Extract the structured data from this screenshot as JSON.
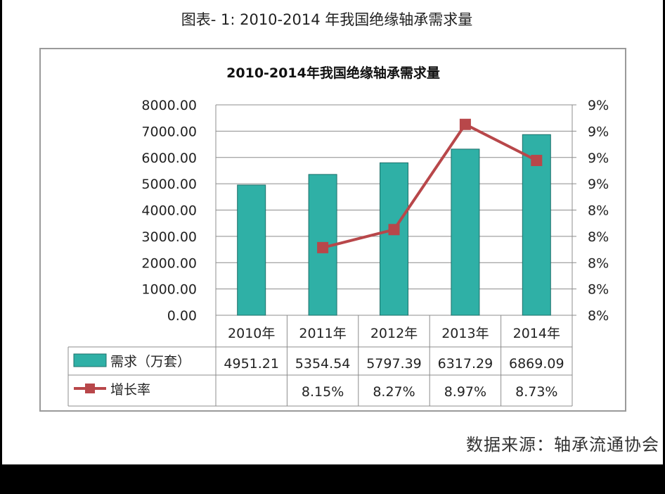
{
  "caption": "图表- 1: 2010-2014 年我国绝缘轴承需求量",
  "source_note": "数据来源：轴承流通协会",
  "colors": {
    "bar": "#2fb0a6",
    "bar_stroke": "#1d6f69",
    "line": "#b8474a",
    "grid": "#8c8c8c"
  },
  "chart_data": {
    "type": "bar",
    "title": "2010-2014年我国绝缘轴承需求量",
    "categories": [
      "2010年",
      "2011年",
      "2012年",
      "2013年",
      "2014年"
    ],
    "series": [
      {
        "name": "需求（万套）",
        "type": "bar",
        "axis": "left",
        "values": [
          4951.21,
          5354.54,
          5797.39,
          6317.29,
          6869.09
        ]
      },
      {
        "name": "增长率",
        "type": "line",
        "axis": "right",
        "values": [
          null,
          8.15,
          8.27,
          8.97,
          8.73
        ],
        "labels": [
          "",
          "8.15%",
          "8.27%",
          "8.97%",
          "8.73%"
        ]
      }
    ],
    "y_left": {
      "min": 0,
      "max": 8000,
      "ticks": [
        "0.00",
        "1000.00",
        "2000.00",
        "3000.00",
        "4000.00",
        "5000.00",
        "6000.00",
        "7000.00",
        "8000.00"
      ]
    },
    "y_right": {
      "min": 7.7,
      "max": 9.1,
      "ticks": [
        "8%",
        "8%",
        "8%",
        "8%",
        "8%",
        "9%",
        "9%",
        "9%",
        "9%"
      ]
    },
    "table_values": [
      "4951.21",
      "5354.54",
      "5797.39",
      "6317.29",
      "6869.09"
    ],
    "grid": true,
    "legend": "data-table"
  }
}
